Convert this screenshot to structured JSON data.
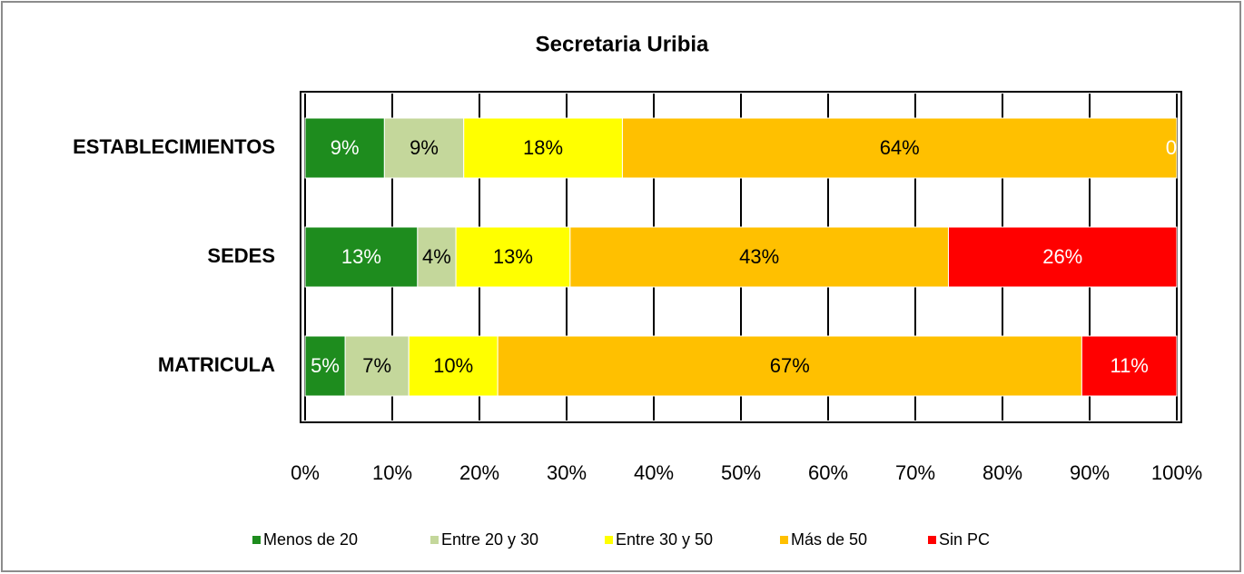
{
  "chart_data": {
    "type": "stacked_bar_horizontal",
    "title": "Secretaria Uribia",
    "categories": [
      "ESTABLECIMIENTOS",
      "SEDES",
      "MATRICULA"
    ],
    "series": [
      {
        "name": "Menos de 20",
        "color": "#1e8c1e",
        "values": [
          9.1,
          12.9,
          4.6
        ],
        "value_labels": [
          "9%",
          "13%",
          "5%"
        ]
      },
      {
        "name": "Entre 20 y 30",
        "color": "#c4d79b",
        "values": [
          9.1,
          4.4,
          7.3
        ],
        "value_labels": [
          "9%",
          "4%",
          "7%"
        ]
      },
      {
        "name": "Entre 30 y 50",
        "color": "#ffff00",
        "values": [
          18.2,
          13.1,
          10.2
        ],
        "value_labels": [
          "18%",
          "13%",
          "10%"
        ]
      },
      {
        "name": "Más de 50",
        "color": "#ffc000",
        "values": [
          63.6,
          43.4,
          67.0
        ],
        "value_labels": [
          "64%",
          "43%",
          "67%"
        ]
      },
      {
        "name": "Sin PC",
        "color": "#ff0000",
        "values": [
          0,
          26.2,
          10.9
        ],
        "value_labels": [
          "0",
          "26%",
          "11%"
        ]
      }
    ],
    "xlim": [
      0,
      100
    ],
    "xticks": [
      {
        "value": 0,
        "label": "0%"
      },
      {
        "value": 10,
        "label": "10%"
      },
      {
        "value": 20,
        "label": "20%"
      },
      {
        "value": 30,
        "label": "30%"
      },
      {
        "value": 40,
        "label": "40%"
      },
      {
        "value": 50,
        "label": "50%"
      },
      {
        "value": 60,
        "label": "60%"
      },
      {
        "value": 70,
        "label": "70%"
      },
      {
        "value": 80,
        "label": "80%"
      },
      {
        "value": 90,
        "label": "90%"
      },
      {
        "value": 100,
        "label": "100%"
      }
    ],
    "grid": true,
    "legend": "bottom"
  }
}
